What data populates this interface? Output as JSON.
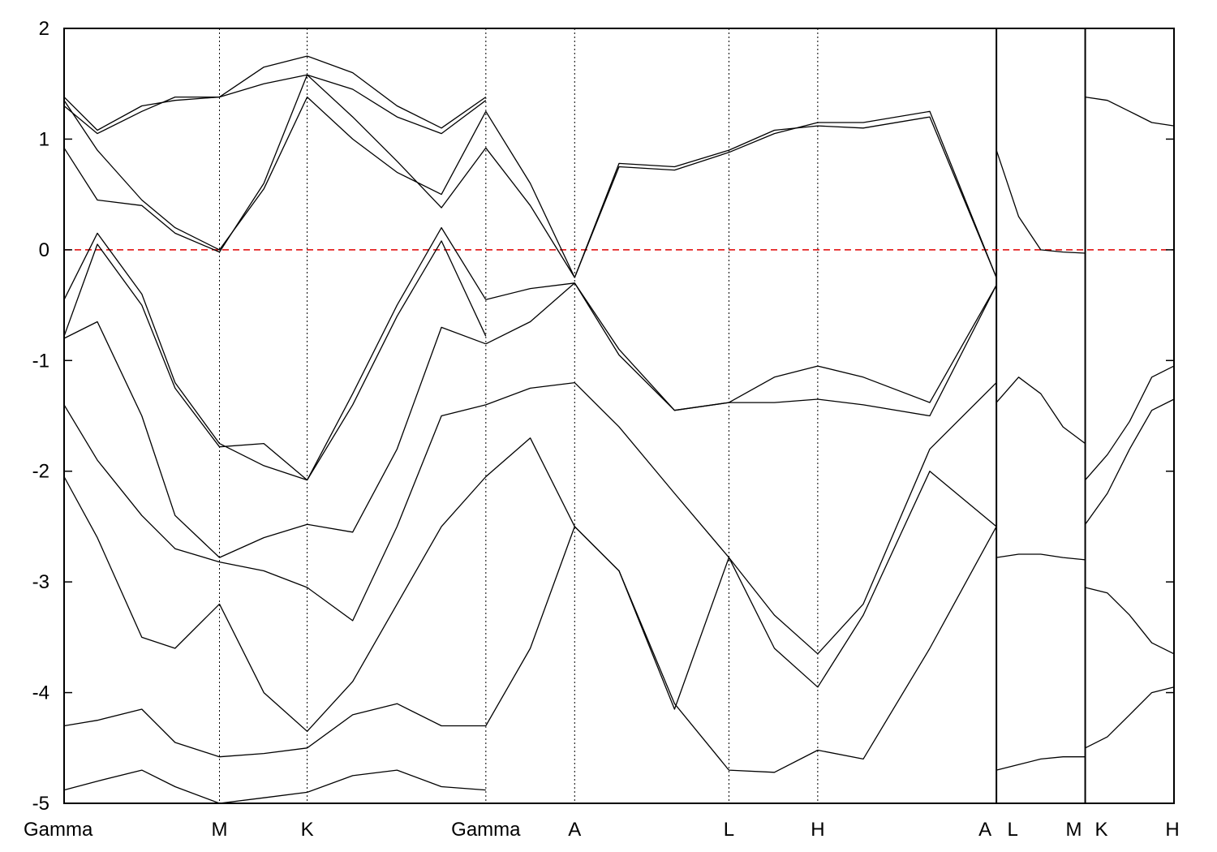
{
  "chart_data": {
    "type": "line",
    "title": "",
    "xlabel": "",
    "ylabel": "",
    "ylim": [
      -5,
      2
    ],
    "yticks": [
      2,
      1,
      0,
      -1,
      -2,
      -3,
      -4,
      -5
    ],
    "ytick_labels": [
      "2",
      "1",
      "0",
      "-1",
      "-2",
      "-3",
      "-4",
      "-5"
    ],
    "kpath": [
      {
        "label": "Gamma",
        "x": 0.0
      },
      {
        "label": "M",
        "x": 0.14
      },
      {
        "label": "K",
        "x": 0.219
      },
      {
        "label": "Gamma",
        "x": 0.38
      },
      {
        "label": "A",
        "x": 0.46
      },
      {
        "label": "L",
        "x": 0.599
      },
      {
        "label": "H",
        "x": 0.679
      },
      {
        "label": "A",
        "x": 0.84
      },
      {
        "label": "L",
        "x": 0.84
      },
      {
        "label": "M",
        "x": 0.92
      },
      {
        "label": "K",
        "x": 0.92
      },
      {
        "label": "H",
        "x": 1.0
      }
    ],
    "xlim": [
      0,
      1
    ],
    "fermi_level": 0,
    "fermi_color": "#e00000",
    "line_color": "#000000",
    "breaks_at": [
      0.84,
      0.92
    ],
    "series": [
      {
        "segment": "Gamma-M-K-Gamma",
        "x": [
          0,
          0.03,
          0.07,
          0.1,
          0.14,
          0.18,
          0.219,
          0.26,
          0.3,
          0.34,
          0.38
        ],
        "y": [
          1.35,
          0.9,
          0.45,
          0.2,
          0.0,
          0.55,
          1.38,
          1.0,
          0.7,
          0.5,
          1.25
        ]
      },
      {
        "segment": "Gamma-M-K-Gamma",
        "x": [
          0,
          0.03,
          0.07,
          0.1,
          0.14,
          0.18,
          0.219,
          0.26,
          0.3,
          0.34,
          0.38
        ],
        "y": [
          0.92,
          0.45,
          0.4,
          0.15,
          -0.02,
          0.6,
          1.58,
          1.2,
          0.8,
          0.38,
          0.92
        ]
      },
      {
        "segment": "Gamma-M-K-Gamma",
        "x": [
          0,
          0.03,
          0.07,
          0.1,
          0.14,
          0.18,
          0.219,
          0.26,
          0.3,
          0.34,
          0.38
        ],
        "y": [
          1.3,
          1.05,
          1.25,
          1.38,
          1.38,
          1.5,
          1.58,
          1.45,
          1.2,
          1.05,
          1.35
        ]
      },
      {
        "segment": "Gamma-M-K-Gamma",
        "x": [
          0,
          0.03,
          0.07,
          0.1,
          0.14,
          0.18,
          0.219,
          0.26,
          0.3,
          0.34,
          0.38
        ],
        "y": [
          1.38,
          1.08,
          1.3,
          1.35,
          1.38,
          1.65,
          1.75,
          1.6,
          1.3,
          1.1,
          1.38
        ]
      },
      {
        "segment": "Gamma-M-K-Gamma",
        "x": [
          0,
          0.03,
          0.07,
          0.1,
          0.14,
          0.18,
          0.219,
          0.26,
          0.3,
          0.34,
          0.38
        ],
        "y": [
          -0.45,
          0.15,
          -0.4,
          -1.2,
          -1.75,
          -1.95,
          -2.08,
          -1.3,
          -0.5,
          0.2,
          -0.45
        ]
      },
      {
        "segment": "Gamma-M-K-Gamma",
        "x": [
          0,
          0.03,
          0.07,
          0.1,
          0.14,
          0.18,
          0.219,
          0.26,
          0.3,
          0.34,
          0.38
        ],
        "y": [
          -0.78,
          0.05,
          -0.5,
          -1.25,
          -1.78,
          -1.75,
          -2.08,
          -1.4,
          -0.6,
          0.08,
          -0.78
        ]
      },
      {
        "segment": "Gamma-M-K-Gamma",
        "x": [
          0,
          0.03,
          0.07,
          0.1,
          0.14,
          0.18,
          0.219,
          0.26,
          0.3,
          0.34,
          0.38
        ],
        "y": [
          -0.8,
          -0.65,
          -1.5,
          -2.4,
          -2.78,
          -2.6,
          -2.48,
          -2.55,
          -1.8,
          -0.7,
          -0.85
        ]
      },
      {
        "segment": "Gamma-M-K-Gamma",
        "x": [
          0,
          0.03,
          0.07,
          0.1,
          0.14,
          0.18,
          0.219,
          0.26,
          0.3,
          0.34,
          0.38
        ],
        "y": [
          -1.4,
          -1.9,
          -2.4,
          -2.7,
          -2.82,
          -2.9,
          -3.05,
          -3.35,
          -2.5,
          -1.5,
          -1.4
        ]
      },
      {
        "segment": "Gamma-M-K-Gamma",
        "x": [
          0,
          0.03,
          0.07,
          0.1,
          0.14,
          0.18,
          0.219,
          0.26,
          0.3,
          0.34,
          0.38
        ],
        "y": [
          -2.05,
          -2.6,
          -3.5,
          -3.6,
          -3.2,
          -4.0,
          -4.35,
          -3.9,
          -3.2,
          -2.5,
          -2.05
        ]
      },
      {
        "segment": "Gamma-M-K-Gamma",
        "x": [
          0,
          0.03,
          0.07,
          0.1,
          0.14,
          0.18,
          0.219,
          0.26,
          0.3,
          0.34,
          0.38
        ],
        "y": [
          -4.3,
          -4.25,
          -4.15,
          -4.45,
          -4.58,
          -4.55,
          -4.5,
          -4.2,
          -4.1,
          -4.3,
          -4.3
        ]
      },
      {
        "segment": "Gamma-M-K-Gamma",
        "x": [
          0,
          0.03,
          0.07,
          0.1,
          0.14,
          0.18,
          0.219,
          0.26,
          0.3,
          0.34,
          0.38
        ],
        "y": [
          -4.88,
          -4.8,
          -4.7,
          -4.85,
          -5.0,
          -4.95,
          -4.9,
          -4.75,
          -4.7,
          -4.85,
          -4.88
        ]
      },
      {
        "segment": "Gamma-A-L-H-A",
        "x": [
          0.38,
          0.42,
          0.46,
          0.5,
          0.55,
          0.599,
          0.64,
          0.679,
          0.72,
          0.78,
          0.84
        ],
        "y": [
          1.25,
          0.6,
          -0.25,
          0.75,
          0.72,
          0.88,
          1.05,
          1.15,
          1.15,
          1.25,
          -0.25
        ]
      },
      {
        "segment": "Gamma-A-L-H-A",
        "x": [
          0.38,
          0.42,
          0.46,
          0.5,
          0.55,
          0.599,
          0.64,
          0.679,
          0.72,
          0.78,
          0.84
        ],
        "y": [
          0.92,
          0.4,
          -0.25,
          0.78,
          0.75,
          0.9,
          1.08,
          1.12,
          1.1,
          1.2,
          -0.25
        ]
      },
      {
        "segment": "Gamma-A-L-H-A",
        "x": [
          0.38,
          0.42,
          0.46,
          0.5,
          0.55,
          0.599,
          0.64,
          0.679,
          0.72,
          0.78,
          0.84
        ],
        "y": [
          -0.45,
          -0.35,
          -0.3,
          -0.9,
          -1.45,
          -1.38,
          -1.15,
          -1.05,
          -1.15,
          -1.38,
          -0.32
        ]
      },
      {
        "segment": "Gamma-A-L-H-A",
        "x": [
          0.38,
          0.42,
          0.46,
          0.5,
          0.55,
          0.599,
          0.64,
          0.679,
          0.72,
          0.78,
          0.84
        ],
        "y": [
          -0.85,
          -0.65,
          -0.3,
          -0.95,
          -1.45,
          -1.38,
          -1.38,
          -1.35,
          -1.4,
          -1.5,
          -0.32
        ]
      },
      {
        "segment": "Gamma-A-L-H-A",
        "x": [
          0.38,
          0.42,
          0.46,
          0.5,
          0.55,
          0.599,
          0.64,
          0.679,
          0.72,
          0.78,
          0.84
        ],
        "y": [
          -1.4,
          -1.25,
          -1.2,
          -1.6,
          -2.2,
          -2.78,
          -3.3,
          -3.65,
          -3.2,
          -1.8,
          -1.2
        ]
      },
      {
        "segment": "Gamma-A-L-H-A",
        "x": [
          0.38,
          0.42,
          0.46,
          0.5,
          0.55,
          0.599,
          0.64,
          0.679,
          0.72,
          0.78,
          0.84
        ],
        "y": [
          -2.05,
          -1.7,
          -2.5,
          -2.9,
          -4.1,
          -4.7,
          -4.72,
          -4.52,
          -4.6,
          -3.6,
          -2.5
        ]
      },
      {
        "segment": "Gamma-A-L-H-A",
        "x": [
          0.38,
          0.42,
          0.46,
          0.5,
          0.55,
          0.599,
          0.64,
          0.679,
          0.72,
          0.78,
          0.84
        ],
        "y": [
          -4.3,
          -3.6,
          -2.5,
          -2.9,
          -4.15,
          -2.78,
          -3.6,
          -3.95,
          -3.3,
          -2.0,
          -2.5
        ]
      },
      {
        "segment": "L-M",
        "x": [
          0.84,
          0.86,
          0.88,
          0.9,
          0.92
        ],
        "y": [
          0.9,
          0.3,
          -0.0,
          -0.02,
          -0.03
        ]
      },
      {
        "segment": "L-M",
        "x": [
          0.84,
          0.86,
          0.88,
          0.9,
          0.92
        ],
        "y": [
          -1.38,
          -1.15,
          -1.3,
          -1.6,
          -1.75
        ]
      },
      {
        "segment": "L-M",
        "x": [
          0.84,
          0.86,
          0.88,
          0.9,
          0.92
        ],
        "y": [
          -2.78,
          -2.75,
          -2.75,
          -2.78,
          -2.8
        ]
      },
      {
        "segment": "L-M",
        "x": [
          0.84,
          0.86,
          0.88,
          0.9,
          0.92
        ],
        "y": [
          -4.7,
          -4.65,
          -4.6,
          -4.58,
          -4.58
        ]
      },
      {
        "segment": "K-H",
        "x": [
          0.92,
          0.94,
          0.96,
          0.98,
          1.0
        ],
        "y": [
          1.38,
          1.35,
          1.25,
          1.15,
          1.12
        ]
      },
      {
        "segment": "K-H",
        "x": [
          0.92,
          0.94,
          0.96,
          0.98,
          1.0
        ],
        "y": [
          -2.08,
          -1.85,
          -1.55,
          -1.15,
          -1.05
        ]
      },
      {
        "segment": "K-H",
        "x": [
          0.92,
          0.94,
          0.96,
          0.98,
          1.0
        ],
        "y": [
          -2.48,
          -2.2,
          -1.8,
          -1.45,
          -1.35
        ]
      },
      {
        "segment": "K-H",
        "x": [
          0.92,
          0.94,
          0.96,
          0.98,
          1.0
        ],
        "y": [
          -3.05,
          -3.1,
          -3.3,
          -3.55,
          -3.65
        ]
      },
      {
        "segment": "K-H",
        "x": [
          0.92,
          0.94,
          0.96,
          0.98,
          1.0
        ],
        "y": [
          -4.5,
          -4.4,
          -4.2,
          -4.0,
          -3.95
        ]
      }
    ]
  }
}
